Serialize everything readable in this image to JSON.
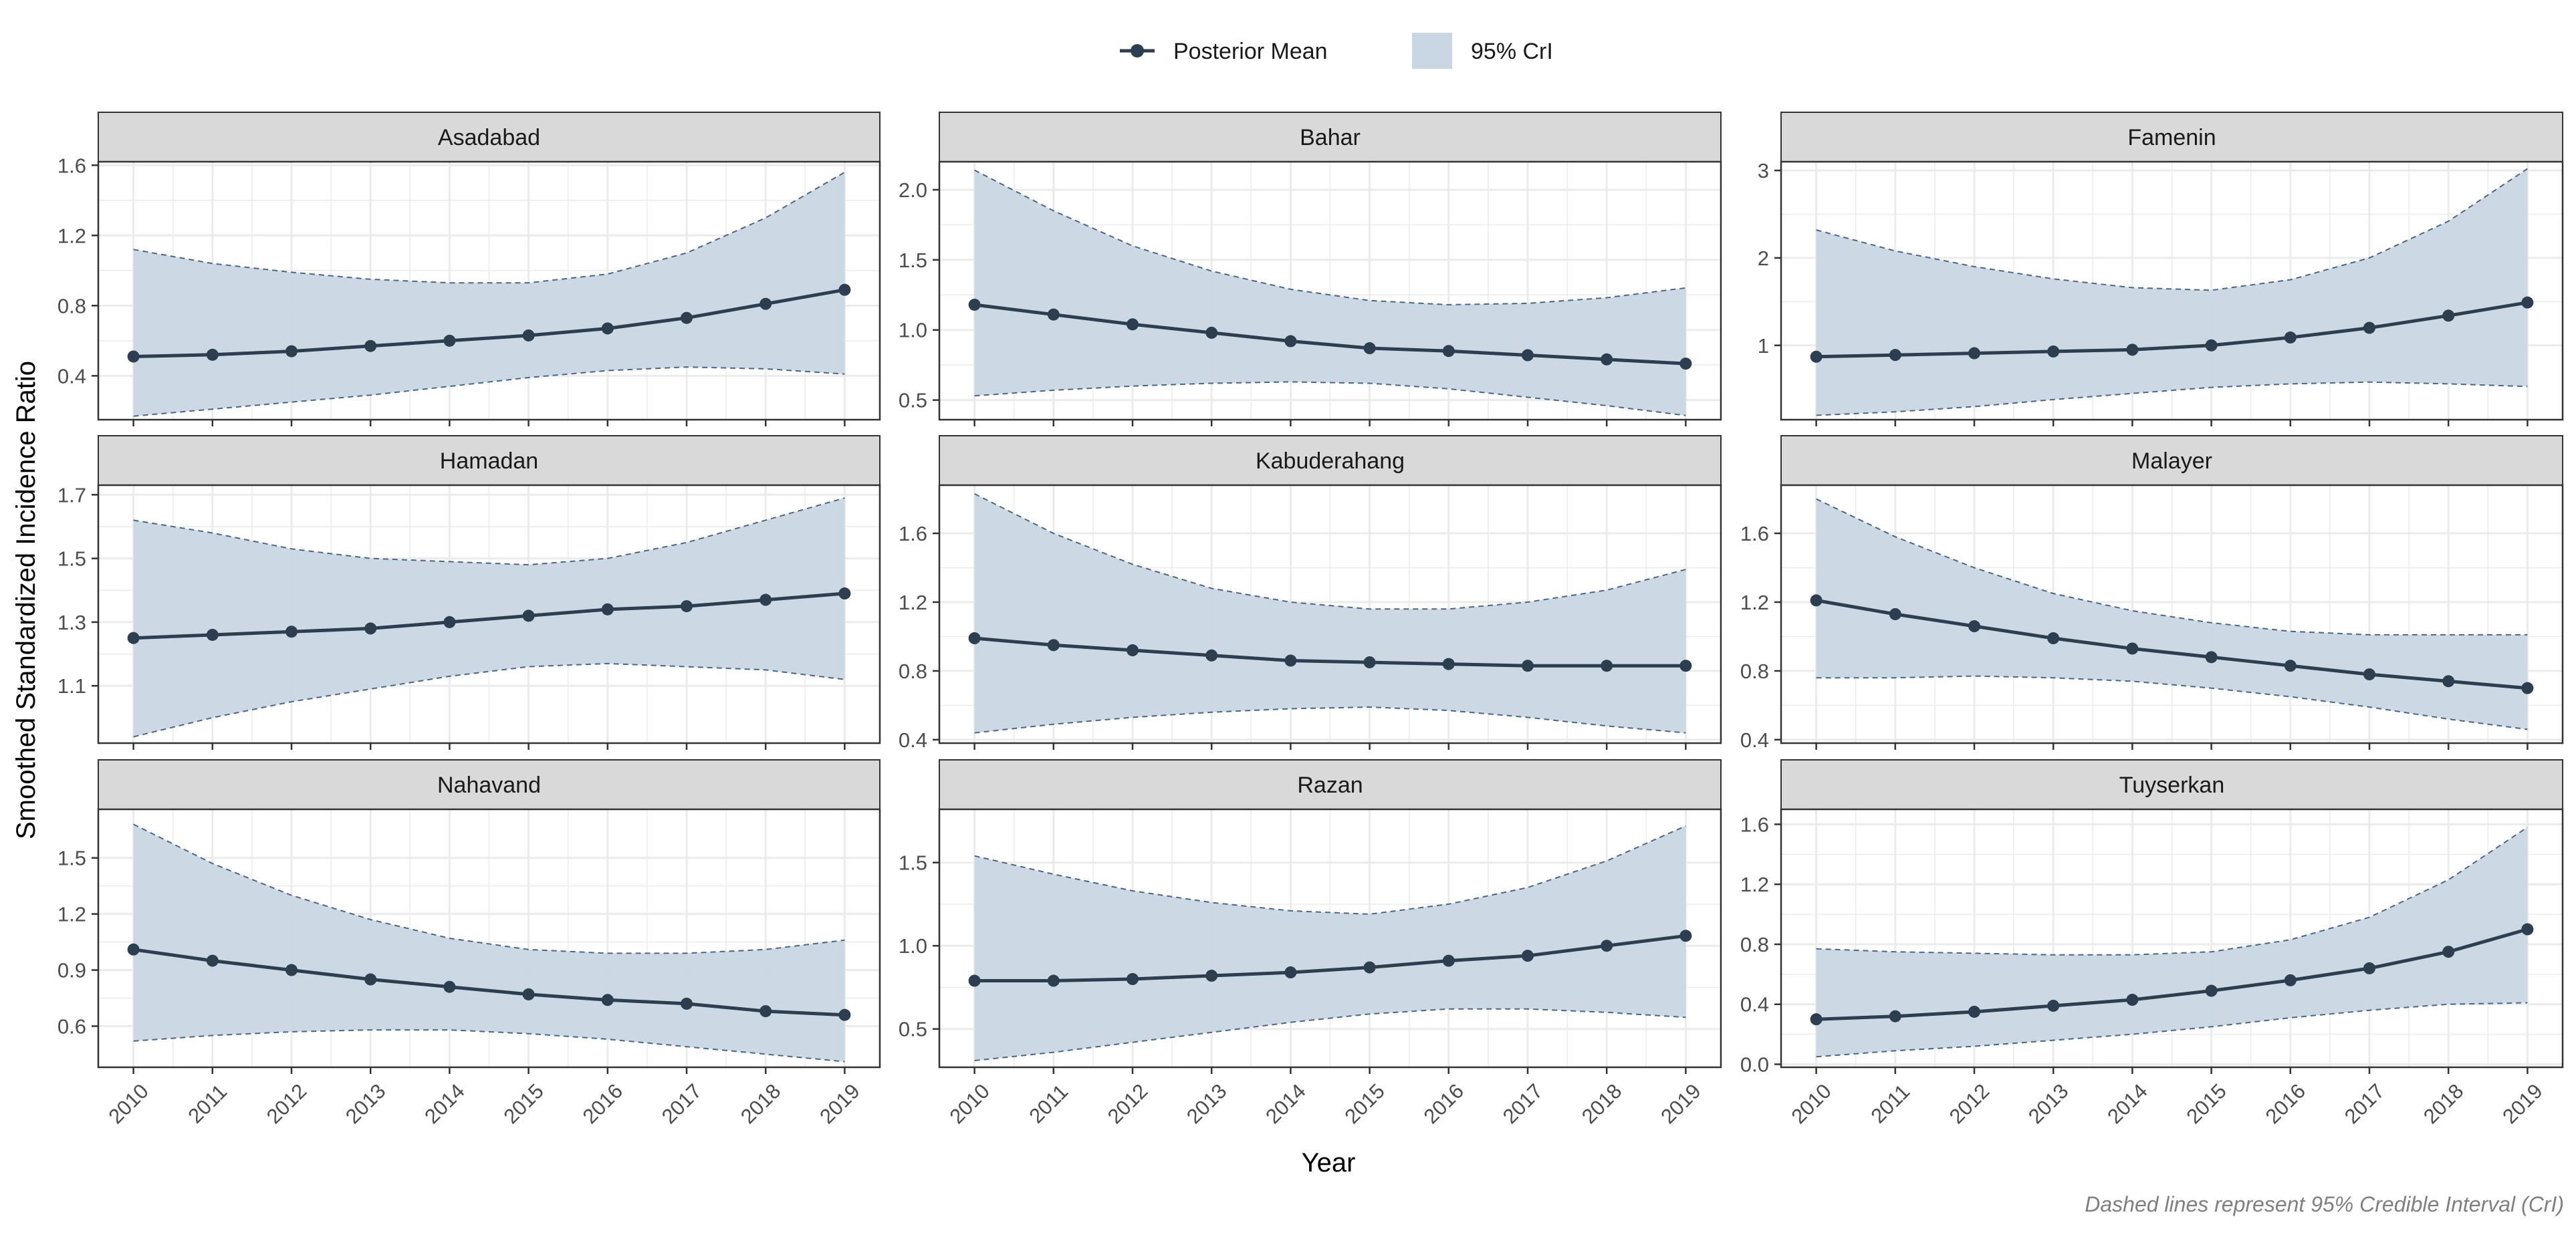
{
  "legend": {
    "mean_label": "Posterior Mean",
    "band_label": "95% CrI"
  },
  "axes": {
    "xlabel": "Year",
    "ylabel": "Smoothed Standardized Incidence Ratio"
  },
  "caption": "Dashed lines represent 95% Credible Interval (CrI)",
  "colors": {
    "band_fill": "#c9d6e3",
    "line": "#2c3e50",
    "panel_border": "#333333",
    "grid": "#ebebeb",
    "strip_bg": "#d9d9d9"
  },
  "chart_data": {
    "type": "line",
    "facet_layout": "3x3",
    "legend_position": "top",
    "grid": true,
    "x": [
      2010,
      2011,
      2012,
      2013,
      2014,
      2015,
      2016,
      2017,
      2018,
      2019
    ],
    "panels": [
      {
        "name": "Asadabad",
        "ylim": [
          0.15,
          1.62
        ],
        "yticks": [
          0.4,
          0.8,
          1.2,
          1.6
        ],
        "ytick_labels": [
          "0.4",
          "0.8",
          "1.2",
          "1.6"
        ],
        "mean": [
          0.51,
          0.52,
          0.54,
          0.57,
          0.6,
          0.63,
          0.67,
          0.73,
          0.81,
          0.89
        ],
        "lower": [
          0.17,
          0.21,
          0.25,
          0.29,
          0.34,
          0.39,
          0.43,
          0.45,
          0.44,
          0.41
        ],
        "upper": [
          1.12,
          1.04,
          0.99,
          0.95,
          0.93,
          0.93,
          0.98,
          1.1,
          1.3,
          1.56
        ]
      },
      {
        "name": "Bahar",
        "ylim": [
          0.36,
          2.2
        ],
        "yticks": [
          0.5,
          1.0,
          1.5,
          2.0
        ],
        "ytick_labels": [
          "0.5",
          "1.0",
          "1.5",
          "2.0"
        ],
        "mean": [
          1.18,
          1.11,
          1.04,
          0.98,
          0.92,
          0.87,
          0.85,
          0.82,
          0.79,
          0.76
        ],
        "lower": [
          0.53,
          0.57,
          0.6,
          0.62,
          0.63,
          0.62,
          0.58,
          0.52,
          0.46,
          0.39
        ],
        "upper": [
          2.14,
          1.85,
          1.6,
          1.42,
          1.29,
          1.21,
          1.18,
          1.19,
          1.23,
          1.3
        ]
      },
      {
        "name": "Famenin",
        "ylim": [
          0.15,
          3.1
        ],
        "yticks": [
          1,
          2,
          3
        ],
        "ytick_labels": [
          "1",
          "2",
          "3"
        ],
        "mean": [
          0.87,
          0.89,
          0.91,
          0.93,
          0.95,
          1.0,
          1.09,
          1.2,
          1.34,
          1.49
        ],
        "lower": [
          0.2,
          0.24,
          0.3,
          0.38,
          0.45,
          0.52,
          0.56,
          0.58,
          0.56,
          0.53
        ],
        "upper": [
          2.32,
          2.08,
          1.9,
          1.76,
          1.66,
          1.63,
          1.75,
          2.0,
          2.42,
          3.02
        ]
      },
      {
        "name": "Hamadan",
        "ylim": [
          0.92,
          1.73
        ],
        "yticks": [
          1.1,
          1.3,
          1.5,
          1.7
        ],
        "ytick_labels": [
          "1.1",
          "1.3",
          "1.5",
          "1.7"
        ],
        "mean": [
          1.25,
          1.26,
          1.27,
          1.28,
          1.3,
          1.32,
          1.34,
          1.35,
          1.37,
          1.39
        ],
        "lower": [
          0.94,
          1.0,
          1.05,
          1.09,
          1.13,
          1.16,
          1.17,
          1.16,
          1.15,
          1.12
        ],
        "upper": [
          1.62,
          1.58,
          1.53,
          1.5,
          1.49,
          1.48,
          1.5,
          1.55,
          1.62,
          1.69
        ]
      },
      {
        "name": "Kabuderahang",
        "ylim": [
          0.38,
          1.88
        ],
        "yticks": [
          0.4,
          0.8,
          1.2,
          1.6
        ],
        "ytick_labels": [
          "0.4",
          "0.8",
          "1.2",
          "1.6"
        ],
        "mean": [
          0.99,
          0.95,
          0.92,
          0.89,
          0.86,
          0.85,
          0.84,
          0.83,
          0.83,
          0.83
        ],
        "lower": [
          0.44,
          0.49,
          0.53,
          0.56,
          0.58,
          0.59,
          0.57,
          0.53,
          0.48,
          0.44
        ],
        "upper": [
          1.83,
          1.6,
          1.42,
          1.28,
          1.2,
          1.16,
          1.16,
          1.2,
          1.27,
          1.39
        ]
      },
      {
        "name": "Malayer",
        "ylim": [
          0.38,
          1.88
        ],
        "yticks": [
          0.4,
          0.8,
          1.2,
          1.6
        ],
        "ytick_labels": [
          "0.4",
          "0.8",
          "1.2",
          "1.6"
        ],
        "mean": [
          1.21,
          1.13,
          1.06,
          0.99,
          0.93,
          0.88,
          0.83,
          0.78,
          0.74,
          0.7
        ],
        "lower": [
          0.76,
          0.76,
          0.77,
          0.76,
          0.74,
          0.7,
          0.65,
          0.59,
          0.52,
          0.46
        ],
        "upper": [
          1.8,
          1.58,
          1.4,
          1.25,
          1.15,
          1.08,
          1.03,
          1.01,
          1.01,
          1.01
        ]
      },
      {
        "name": "Nahavand",
        "ylim": [
          0.38,
          1.76
        ],
        "yticks": [
          0.6,
          0.9,
          1.2,
          1.5
        ],
        "ytick_labels": [
          "0.6",
          "0.9",
          "1.2",
          "1.5"
        ],
        "mean": [
          1.01,
          0.95,
          0.9,
          0.85,
          0.81,
          0.77,
          0.74,
          0.72,
          0.68,
          0.66
        ],
        "lower": [
          0.52,
          0.55,
          0.57,
          0.58,
          0.58,
          0.56,
          0.53,
          0.49,
          0.45,
          0.41
        ],
        "upper": [
          1.68,
          1.47,
          1.3,
          1.17,
          1.07,
          1.01,
          0.99,
          0.99,
          1.01,
          1.06
        ]
      },
      {
        "name": "Razan",
        "ylim": [
          0.27,
          1.82
        ],
        "yticks": [
          0.5,
          1.0,
          1.5
        ],
        "ytick_labels": [
          "0.5",
          "1.0",
          "1.5"
        ],
        "mean": [
          0.79,
          0.79,
          0.8,
          0.82,
          0.84,
          0.87,
          0.91,
          0.94,
          1.0,
          1.06
        ],
        "lower": [
          0.31,
          0.36,
          0.42,
          0.48,
          0.54,
          0.59,
          0.62,
          0.62,
          0.6,
          0.57
        ],
        "upper": [
          1.54,
          1.43,
          1.33,
          1.26,
          1.21,
          1.19,
          1.25,
          1.35,
          1.51,
          1.72
        ]
      },
      {
        "name": "Tuyserkan",
        "ylim": [
          -0.02,
          1.7
        ],
        "yticks": [
          0.0,
          0.4,
          0.8,
          1.2,
          1.6
        ],
        "ytick_labels": [
          "0.0",
          "0.4",
          "0.8",
          "1.2",
          "1.6"
        ],
        "mean": [
          0.3,
          0.32,
          0.35,
          0.39,
          0.43,
          0.49,
          0.56,
          0.64,
          0.75,
          0.9
        ],
        "lower": [
          0.05,
          0.09,
          0.12,
          0.16,
          0.2,
          0.25,
          0.31,
          0.36,
          0.4,
          0.41
        ],
        "upper": [
          0.77,
          0.75,
          0.74,
          0.73,
          0.73,
          0.75,
          0.83,
          0.98,
          1.23,
          1.58
        ]
      }
    ]
  }
}
